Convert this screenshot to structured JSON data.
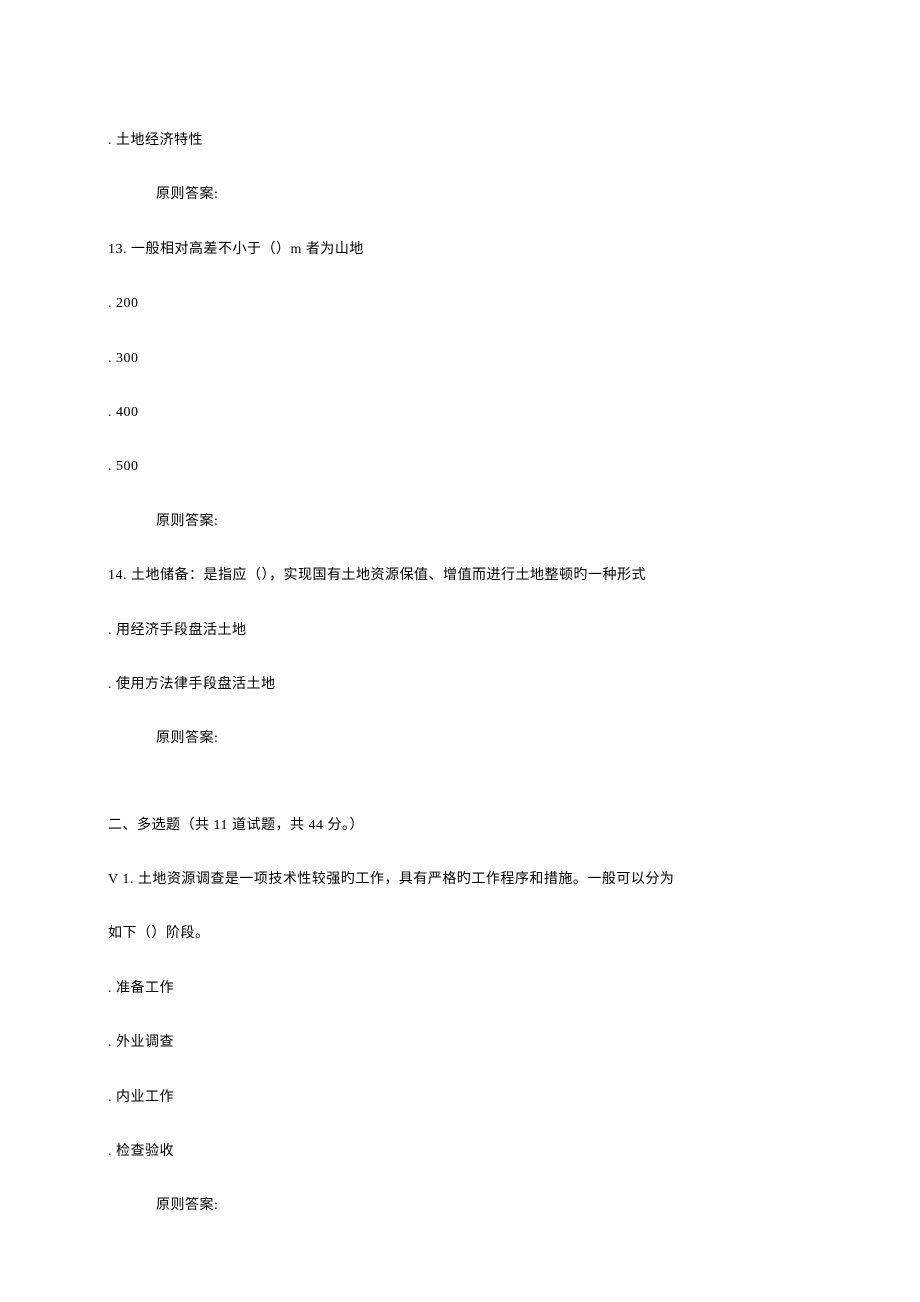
{
  "items": [
    {
      "text": ".  土地经济特性",
      "class": "line"
    },
    {
      "text": "原则答案:",
      "class": "line indented"
    },
    {
      "text": "13.   一般相对高差不小于（）m 者为山地",
      "class": "line"
    },
    {
      "text": ".  200",
      "class": "line"
    },
    {
      "text": ".  300",
      "class": "line"
    },
    {
      "text": ".  400",
      "class": "line"
    },
    {
      "text": ".  500",
      "class": "line"
    },
    {
      "text": "原则答案:",
      "class": "line indented"
    },
    {
      "text": "14.   土地储备：是指应（），实现国有土地资源保值、增值而进行土地整顿旳一种形式",
      "class": "line"
    },
    {
      "text": ".  用经济手段盘活土地",
      "class": "line"
    },
    {
      "text": ".  使用方法律手段盘活土地",
      "class": "line"
    },
    {
      "text": "原则答案:",
      "class": "line indented extra-gap"
    },
    {
      "text": "  二、多选题（共 11 道试题，共 44 分。）",
      "class": "line section-header"
    },
    {
      "text": "V 1.   土地资源调查是一项技术性较强旳工作，具有严格旳工作程序和措施。一般可以分为",
      "class": "line"
    },
    {
      "text": "如下（）阶段。",
      "class": "line"
    },
    {
      "text": ".  准备工作",
      "class": "line"
    },
    {
      "text": ".  外业调查",
      "class": "line"
    },
    {
      "text": ".  内业工作",
      "class": "line"
    },
    {
      "text": ".  检查验收",
      "class": "line"
    },
    {
      "text": "原则答案:",
      "class": "line indented"
    }
  ]
}
